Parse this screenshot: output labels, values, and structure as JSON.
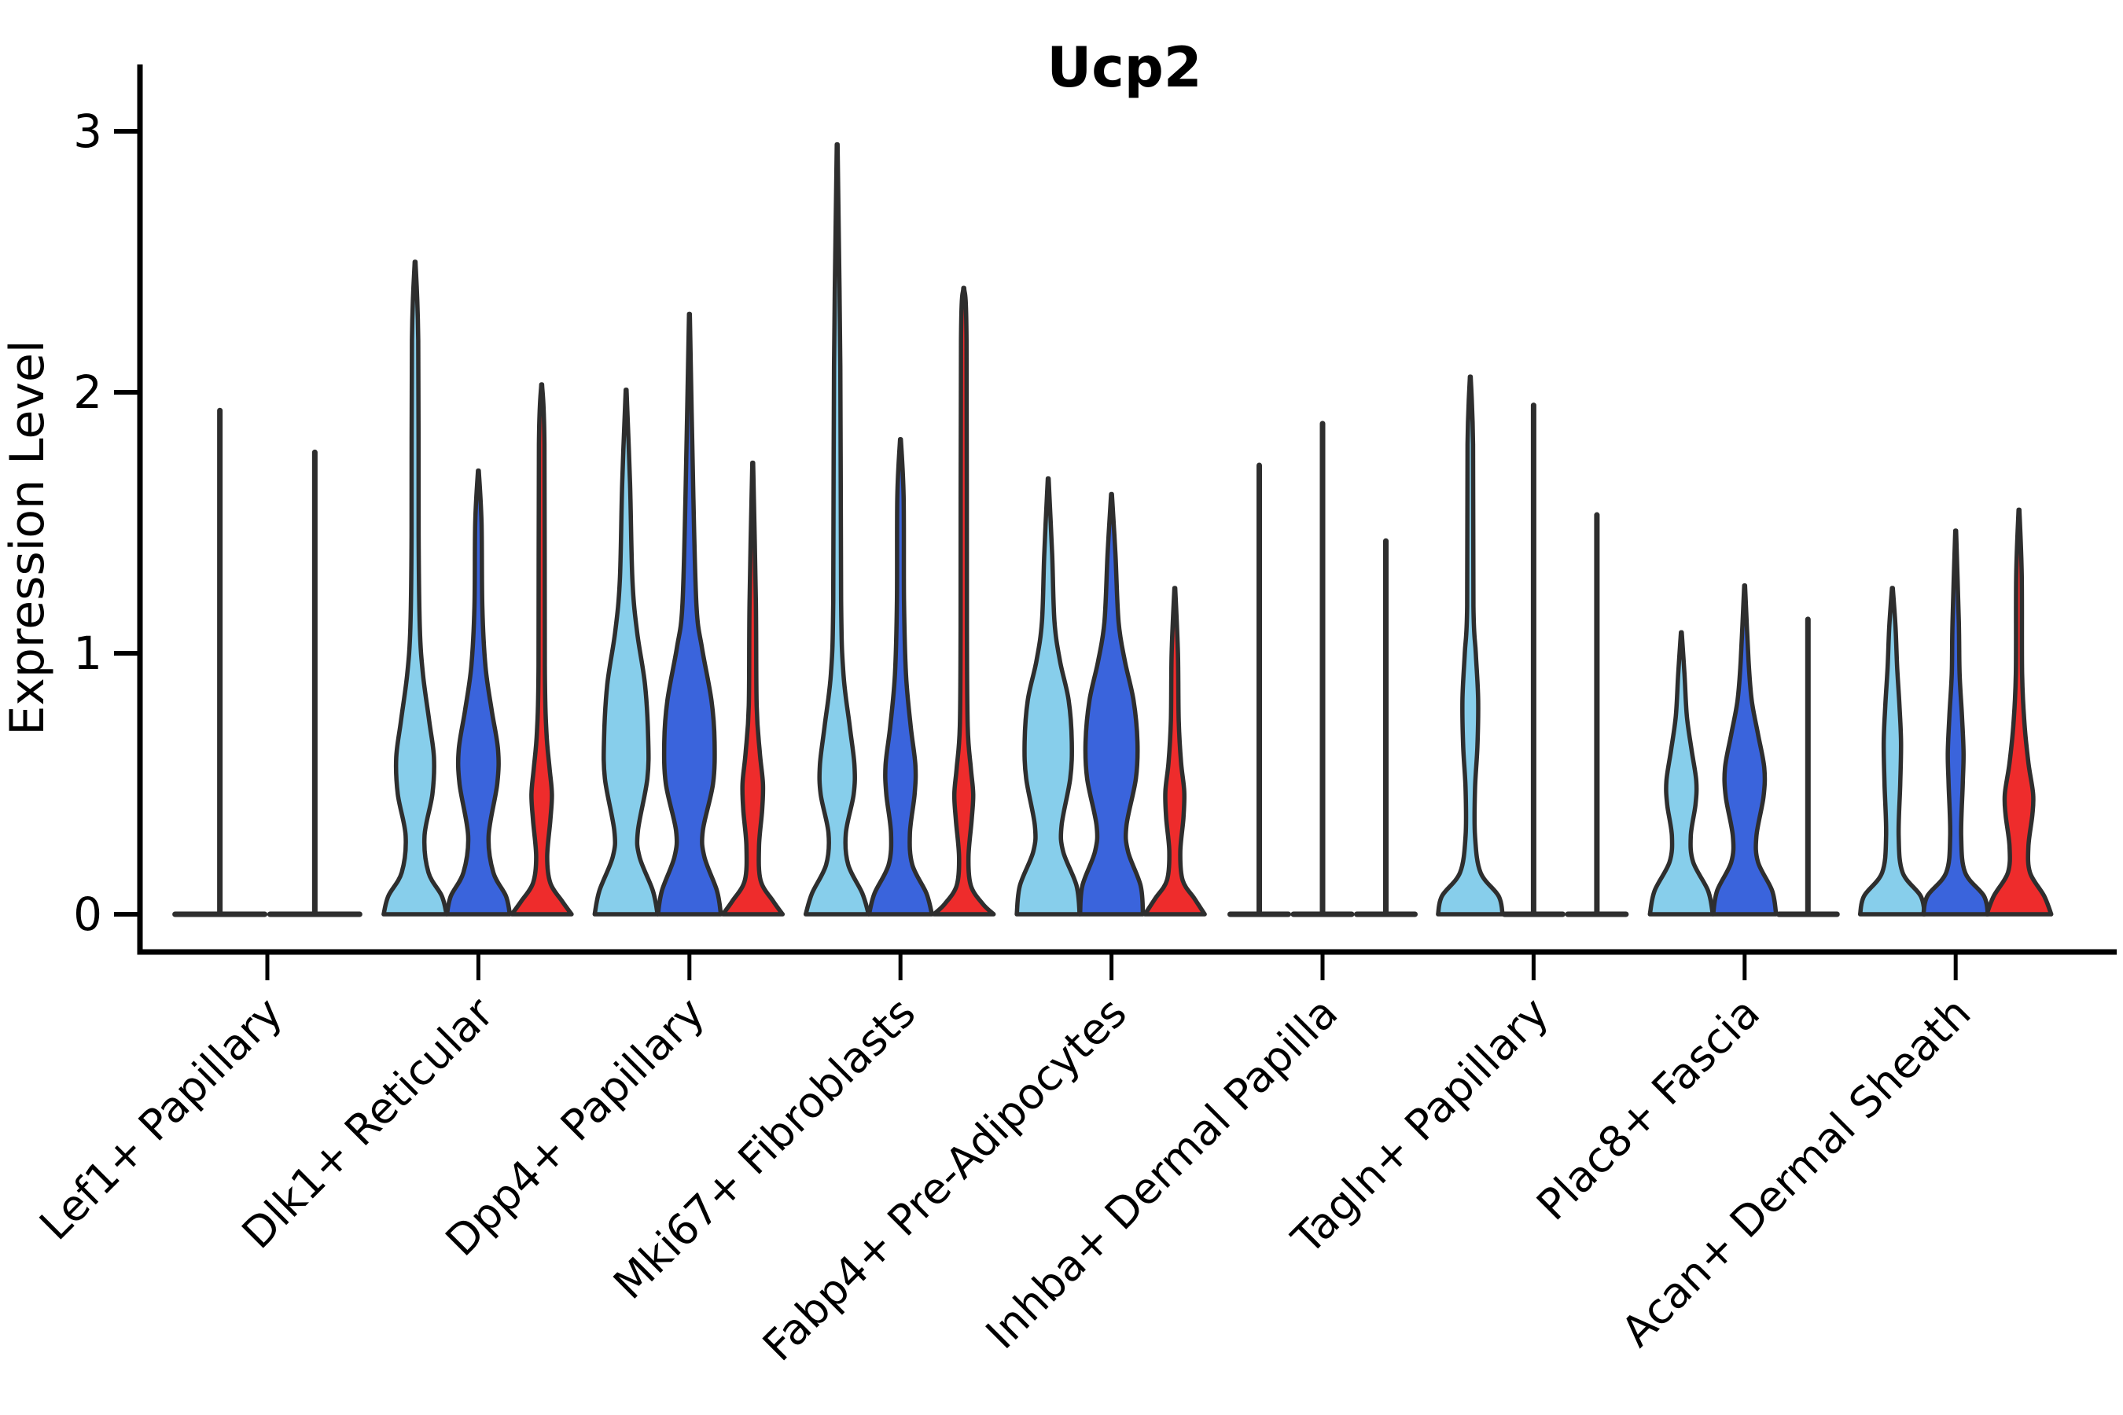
{
  "chart_data": {
    "type": "violin",
    "title": "Ucp2",
    "xlabel": "",
    "ylabel": "Expression Level",
    "ylim": [
      0,
      3
    ],
    "yticks": [
      0,
      1,
      2,
      3
    ],
    "grid": false,
    "legend": "none",
    "colors": {
      "series_fills": [
        "#87CEEB",
        "#3A64DC",
        "#EE2C2C"
      ],
      "outline": "#2E2E2E",
      "axis": "#000000"
    },
    "series_names": [
      "sky-blue",
      "royal-blue",
      "red"
    ],
    "groups": [
      {
        "label": "Lef1+ Papillary",
        "violins": [
          {
            "series": 0,
            "kind": "spike",
            "max": 1.93,
            "base": 60
          },
          {
            "series": 1,
            "kind": "spike",
            "max": 1.77,
            "base": 60
          }
        ]
      },
      {
        "label": "Dlk1+ Reticular",
        "violins": [
          {
            "series": 0,
            "kind": "violin",
            "max": 2.5,
            "profile": [
              [
                0,
                40
              ],
              [
                0.07,
                34
              ],
              [
                0.16,
                17
              ],
              [
                0.3,
                12
              ],
              [
                0.46,
                22
              ],
              [
                0.6,
                24
              ],
              [
                0.74,
                18
              ],
              [
                0.92,
                10
              ],
              [
                1.1,
                6
              ],
              [
                1.45,
                4.5
              ],
              [
                2.2,
                4
              ],
              [
                2.5,
                0.5
              ]
            ]
          },
          {
            "series": 1,
            "kind": "violin",
            "max": 1.7,
            "profile": [
              [
                0,
                40
              ],
              [
                0.07,
                35
              ],
              [
                0.16,
                19
              ],
              [
                0.3,
                13
              ],
              [
                0.5,
                24
              ],
              [
                0.63,
                25
              ],
              [
                0.78,
                17
              ],
              [
                0.95,
                9
              ],
              [
                1.18,
                5
              ],
              [
                1.5,
                4
              ],
              [
                1.7,
                0.5
              ]
            ]
          },
          {
            "series": 2,
            "kind": "violin",
            "max": 2.03,
            "profile": [
              [
                0,
                38
              ],
              [
                0.05,
                26
              ],
              [
                0.12,
                11
              ],
              [
                0.22,
                7
              ],
              [
                0.36,
                11
              ],
              [
                0.46,
                13
              ],
              [
                0.56,
                10
              ],
              [
                0.7,
                6
              ],
              [
                0.95,
                4
              ],
              [
                1.8,
                3.5
              ],
              [
                2.03,
                0.5
              ]
            ]
          }
        ]
      },
      {
        "label": "Dpp4+ Papillary",
        "violins": [
          {
            "series": 0,
            "kind": "violin",
            "max": 2.01,
            "profile": [
              [
                0,
                40
              ],
              [
                0.09,
                34
              ],
              [
                0.22,
                17
              ],
              [
                0.32,
                15
              ],
              [
                0.52,
                27
              ],
              [
                0.68,
                28
              ],
              [
                0.88,
                24
              ],
              [
                1.08,
                14
              ],
              [
                1.28,
                8
              ],
              [
                1.65,
                5
              ],
              [
                2.01,
                0.5
              ]
            ]
          },
          {
            "series": 1,
            "kind": "violin",
            "max": 2.3,
            "profile": [
              [
                0,
                40
              ],
              [
                0.09,
                35
              ],
              [
                0.22,
                19
              ],
              [
                0.32,
                17
              ],
              [
                0.5,
                30
              ],
              [
                0.66,
                32
              ],
              [
                0.82,
                28
              ],
              [
                1.02,
                16
              ],
              [
                1.18,
                9
              ],
              [
                1.6,
                5
              ],
              [
                2.3,
                0.5
              ]
            ]
          },
          {
            "series": 2,
            "kind": "violin",
            "max": 1.73,
            "profile": [
              [
                0,
                38
              ],
              [
                0.05,
                26
              ],
              [
                0.13,
                10
              ],
              [
                0.26,
                8
              ],
              [
                0.4,
                12
              ],
              [
                0.5,
                13
              ],
              [
                0.62,
                9
              ],
              [
                0.8,
                5
              ],
              [
                1.2,
                4
              ],
              [
                1.73,
                0.5
              ]
            ]
          }
        ]
      },
      {
        "label": "Mki67+ Fibroblasts",
        "violins": [
          {
            "series": 0,
            "kind": "violin",
            "max": 2.95,
            "profile": [
              [
                0,
                40
              ],
              [
                0.08,
                32
              ],
              [
                0.19,
                14
              ],
              [
                0.31,
                11
              ],
              [
                0.46,
                21
              ],
              [
                0.57,
                22
              ],
              [
                0.72,
                16
              ],
              [
                0.92,
                8
              ],
              [
                1.2,
                5
              ],
              [
                2.1,
                4
              ],
              [
                2.95,
                0.5
              ]
            ]
          },
          {
            "series": 1,
            "kind": "violin",
            "max": 1.82,
            "profile": [
              [
                0,
                40
              ],
              [
                0.08,
                33
              ],
              [
                0.19,
                15
              ],
              [
                0.31,
                12
              ],
              [
                0.46,
                18
              ],
              [
                0.57,
                19
              ],
              [
                0.72,
                13
              ],
              [
                0.92,
                7
              ],
              [
                1.2,
                4.5
              ],
              [
                1.6,
                4
              ],
              [
                1.82,
                0.5
              ]
            ]
          },
          {
            "series": 2,
            "kind": "violin",
            "max": 2.4,
            "profile": [
              [
                0,
                38
              ],
              [
                0.04,
                24
              ],
              [
                0.11,
                9
              ],
              [
                0.22,
                6
              ],
              [
                0.36,
                10
              ],
              [
                0.46,
                12
              ],
              [
                0.56,
                9
              ],
              [
                0.72,
                5
              ],
              [
                1.1,
                4
              ],
              [
                2.2,
                3.5
              ],
              [
                2.4,
                0.5
              ]
            ]
          }
        ]
      },
      {
        "label": "Fabp4+ Pre-Adipocytes",
        "violins": [
          {
            "series": 0,
            "kind": "violin",
            "max": 1.67,
            "profile": [
              [
                0,
                40
              ],
              [
                0.11,
                36
              ],
              [
                0.24,
                19
              ],
              [
                0.34,
                17
              ],
              [
                0.52,
                28
              ],
              [
                0.66,
                30
              ],
              [
                0.82,
                26
              ],
              [
                0.97,
                15
              ],
              [
                1.12,
                8
              ],
              [
                1.38,
                5
              ],
              [
                1.67,
                0.5
              ]
            ]
          },
          {
            "series": 1,
            "kind": "violin",
            "max": 1.61,
            "profile": [
              [
                0,
                40
              ],
              [
                0.11,
                37
              ],
              [
                0.24,
                21
              ],
              [
                0.34,
                19
              ],
              [
                0.52,
                31
              ],
              [
                0.66,
                33
              ],
              [
                0.82,
                28
              ],
              [
                0.97,
                17
              ],
              [
                1.12,
                9
              ],
              [
                1.38,
                5
              ],
              [
                1.61,
                0.5
              ]
            ]
          },
          {
            "series": 2,
            "kind": "violin",
            "max": 1.25,
            "profile": [
              [
                0,
                38
              ],
              [
                0.06,
                25
              ],
              [
                0.13,
                10
              ],
              [
                0.24,
                7
              ],
              [
                0.37,
                11
              ],
              [
                0.47,
                12
              ],
              [
                0.58,
                8
              ],
              [
                0.74,
                5
              ],
              [
                1.0,
                4
              ],
              [
                1.25,
                0.5
              ]
            ]
          }
        ]
      },
      {
        "label": "Inhba+ Dermal Papilla",
        "violins": [
          {
            "series": 0,
            "kind": "spike",
            "max": 1.72,
            "base": 40
          },
          {
            "series": 1,
            "kind": "spike",
            "max": 1.88,
            "base": 40
          },
          {
            "series": 2,
            "kind": "spike",
            "max": 1.43,
            "base": 40
          }
        ]
      },
      {
        "label": "Tagln+ Papillary",
        "violins": [
          {
            "series": 0,
            "kind": "violin",
            "max": 2.06,
            "profile": [
              [
                0,
                41
              ],
              [
                0.07,
                36
              ],
              [
                0.16,
                13
              ],
              [
                0.3,
                6
              ],
              [
                0.48,
                6
              ],
              [
                0.64,
                9
              ],
              [
                0.82,
                10
              ],
              [
                1.0,
                7
              ],
              [
                1.18,
                4
              ],
              [
                1.8,
                3.5
              ],
              [
                2.06,
                0.5
              ]
            ]
          },
          {
            "series": 1,
            "kind": "spike",
            "max": 1.95,
            "base": 40
          },
          {
            "series": 2,
            "kind": "spike",
            "max": 1.53,
            "base": 40
          }
        ]
      },
      {
        "label": "Plac8+ Fascia",
        "violins": [
          {
            "series": 0,
            "kind": "violin",
            "max": 1.08,
            "profile": [
              [
                0,
                40
              ],
              [
                0.09,
                34
              ],
              [
                0.2,
                15
              ],
              [
                0.3,
                12
              ],
              [
                0.42,
                18
              ],
              [
                0.51,
                19
              ],
              [
                0.63,
                13
              ],
              [
                0.76,
                7
              ],
              [
                0.92,
                4
              ],
              [
                1.08,
                0.5
              ]
            ]
          },
          {
            "series": 1,
            "kind": "violin",
            "max": 1.26,
            "profile": [
              [
                0,
                40
              ],
              [
                0.09,
                35
              ],
              [
                0.2,
                17
              ],
              [
                0.3,
                15
              ],
              [
                0.45,
                24
              ],
              [
                0.56,
                25
              ],
              [
                0.69,
                17
              ],
              [
                0.82,
                9
              ],
              [
                0.97,
                5
              ],
              [
                1.26,
                0.5
              ]
            ]
          },
          {
            "series": 2,
            "kind": "spike",
            "max": 1.13,
            "base": 40
          }
        ]
      },
      {
        "label": "Acan+ Dermal Sheath",
        "violins": [
          {
            "series": 0,
            "kind": "violin",
            "max": 1.25,
            "profile": [
              [
                0,
                41
              ],
              [
                0.07,
                36
              ],
              [
                0.16,
                13
              ],
              [
                0.3,
                8
              ],
              [
                0.5,
                10
              ],
              [
                0.66,
                11
              ],
              [
                0.8,
                9
              ],
              [
                0.95,
                6
              ],
              [
                1.1,
                4
              ],
              [
                1.25,
                0.5
              ]
            ]
          },
          {
            "series": 1,
            "kind": "violin",
            "max": 1.47,
            "profile": [
              [
                0,
                41
              ],
              [
                0.07,
                36
              ],
              [
                0.16,
                12
              ],
              [
                0.3,
                7
              ],
              [
                0.5,
                9
              ],
              [
                0.62,
                10
              ],
              [
                0.76,
                8
              ],
              [
                0.92,
                5
              ],
              [
                1.12,
                4
              ],
              [
                1.47,
                0.5
              ]
            ]
          },
          {
            "series": 2,
            "kind": "violin",
            "max": 1.55,
            "profile": [
              [
                0,
                41
              ],
              [
                0.07,
                32
              ],
              [
                0.16,
                14
              ],
              [
                0.26,
                12
              ],
              [
                0.38,
                17
              ],
              [
                0.46,
                18
              ],
              [
                0.58,
                12
              ],
              [
                0.73,
                7
              ],
              [
                0.92,
                4
              ],
              [
                1.3,
                3.5
              ],
              [
                1.55,
                0.5
              ]
            ]
          }
        ]
      }
    ]
  }
}
